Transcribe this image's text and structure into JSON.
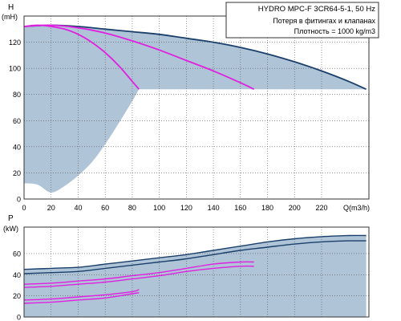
{
  "chart_data": [
    {
      "type": "line",
      "title": "HYDRO MPC-F 3CR64-5-1, 50 Hz",
      "annotations": [
        "Потеря в фитингах и клапанах",
        "Плотность = 1000 kg/m3"
      ],
      "ylabel": "H",
      "yunit": "(mH)",
      "xlabel": "Q(m3/h)",
      "xlim": [
        0,
        255
      ],
      "ylim": [
        0,
        140
      ],
      "xticks": [
        0,
        20,
        40,
        60,
        80,
        100,
        120,
        140,
        160,
        180,
        200,
        220
      ],
      "yticks": [
        0,
        20,
        40,
        60,
        80,
        100,
        120
      ],
      "grid": true,
      "colors": {
        "main": "#1a3f6b",
        "partial": "#e020e0",
        "area": "#b0c4d8",
        "grid": "#555555"
      },
      "series": [
        {
          "role": "full-speed curve (all pumps)",
          "x": [
            0,
            20,
            40,
            60,
            80,
            100,
            120,
            140,
            160,
            180,
            200,
            220,
            240,
            253
          ],
          "y": [
            132,
            133,
            132,
            130,
            128,
            126,
            123,
            120,
            116,
            111,
            105,
            98,
            90,
            84
          ]
        },
        {
          "role": "one pump",
          "x": [
            0,
            10,
            20,
            30,
            40,
            50,
            60,
            70,
            80,
            85
          ],
          "y": [
            132,
            133,
            132,
            130,
            126,
            120,
            112,
            102,
            90,
            84
          ]
        },
        {
          "role": "two pumps",
          "x": [
            0,
            20,
            40,
            60,
            80,
            100,
            120,
            140,
            160,
            170
          ],
          "y": [
            132,
            133,
            131,
            127,
            121,
            114,
            106,
            98,
            89,
            84
          ]
        }
      ],
      "operating_area": {
        "upper": {
          "x": [
            0,
            20,
            40,
            60,
            80,
            100,
            120,
            140,
            160,
            180,
            200,
            220,
            240,
            253
          ],
          "y": [
            132,
            133,
            132,
            130,
            128,
            126,
            123,
            120,
            116,
            111,
            105,
            98,
            90,
            84
          ]
        },
        "floor_y": 84,
        "lower": {
          "x": [
            0,
            10,
            20,
            30,
            40,
            50,
            60,
            70,
            80,
            85
          ],
          "y": [
            12,
            11,
            5,
            10,
            18,
            28,
            42,
            58,
            75,
            84
          ]
        }
      }
    },
    {
      "type": "line",
      "ylabel": "P",
      "yunit": "(kW)",
      "xlim": [
        0,
        255
      ],
      "ylim": [
        0,
        85
      ],
      "yticks": [
        0,
        20,
        40,
        60
      ],
      "grid": true,
      "series": [
        {
          "role": "P1 full speed (all pumps)",
          "x": [
            0,
            20,
            40,
            60,
            80,
            100,
            120,
            140,
            160,
            180,
            200,
            220,
            240,
            253
          ],
          "y": [
            45,
            46,
            47,
            50,
            53,
            56,
            59,
            63,
            67,
            71,
            74,
            76,
            77,
            77
          ]
        },
        {
          "role": "P2 full speed (all pumps)",
          "x": [
            0,
            20,
            40,
            60,
            80,
            100,
            120,
            140,
            160,
            180,
            200,
            220,
            240,
            253
          ],
          "y": [
            41,
            42,
            43,
            46,
            49,
            52,
            55,
            59,
            63,
            66,
            69,
            71,
            72,
            72
          ]
        },
        {
          "role": "P1 two pumps",
          "x": [
            0,
            20,
            40,
            60,
            80,
            100,
            120,
            140,
            160,
            170
          ],
          "y": [
            31,
            32,
            34,
            36,
            39,
            42,
            46,
            50,
            52,
            52
          ]
        },
        {
          "role": "P2 two pumps",
          "x": [
            0,
            20,
            40,
            60,
            80,
            100,
            120,
            140,
            160,
            170
          ],
          "y": [
            28,
            29,
            31,
            33,
            36,
            39,
            43,
            46,
            48,
            48
          ]
        },
        {
          "role": "P1 one pump",
          "x": [
            0,
            20,
            40,
            60,
            80,
            85
          ],
          "y": [
            16,
            17,
            19,
            21,
            24,
            26
          ]
        },
        {
          "role": "P2 one pump",
          "x": [
            0,
            20,
            40,
            60,
            80,
            85
          ],
          "y": [
            13,
            14,
            16,
            18,
            22,
            23
          ]
        }
      ],
      "operating_area": {
        "upper": {
          "x": [
            0,
            20,
            40,
            60,
            80,
            100,
            120,
            140,
            160,
            180,
            200,
            220,
            240,
            253
          ],
          "y": [
            45,
            46,
            47,
            50,
            53,
            56,
            59,
            63,
            67,
            71,
            74,
            76,
            77,
            77
          ]
        },
        "lower": {
          "x": [
            253,
            240,
            220,
            200,
            180,
            170,
            160,
            140,
            120,
            100,
            85,
            80,
            60,
            40,
            20,
            0
          ],
          "y": [
            0,
            0,
            0,
            0,
            0,
            0,
            0,
            0,
            0,
            0,
            0,
            0,
            0,
            0,
            0,
            0
          ]
        }
      }
    }
  ]
}
